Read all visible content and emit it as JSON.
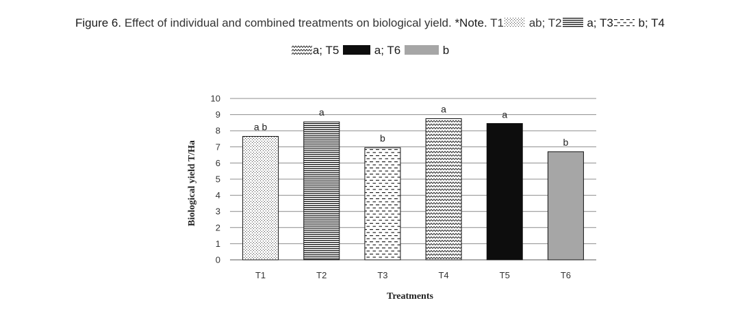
{
  "caption": {
    "line1": {
      "prefix": "Figure 6.",
      "text": "Effect of individual and combined treatments on biological yield.",
      "note": "*Note.",
      "t1": "T1",
      "t1_grade": "ab;",
      "t2": "T2",
      "t2_grade": "a;",
      "t3": "T3",
      "t3_grade": "b;",
      "t4": "T4"
    },
    "line2": {
      "t4_grade": "a;",
      "t5": "T5",
      "t5_grade": "a;",
      "t6": "T6",
      "t6_grade": "b"
    }
  },
  "chart_data": {
    "type": "bar",
    "categories": [
      "T1",
      "T2",
      "T3",
      "T4",
      "T5",
      "T6"
    ],
    "values": [
      7.65,
      8.55,
      6.95,
      8.75,
      8.45,
      6.7
    ],
    "data_labels": [
      "a b",
      "a",
      "b",
      "a",
      "a",
      "b"
    ],
    "patterns": [
      "dots",
      "horizontal-lines",
      "dashes",
      "zigzag",
      "solid-black",
      "solid-gray"
    ],
    "xlabel": "Treatments",
    "ylabel": "Biological yield T/Ha",
    "ylim": [
      0,
      10
    ],
    "yticks": [
      0,
      1,
      2,
      3,
      4,
      5,
      6,
      7,
      8,
      9,
      10
    ],
    "grid": true,
    "colors": {
      "gray": "#a6a6a6",
      "black": "#0d0d0d",
      "grid": "#8c8c8c"
    }
  }
}
